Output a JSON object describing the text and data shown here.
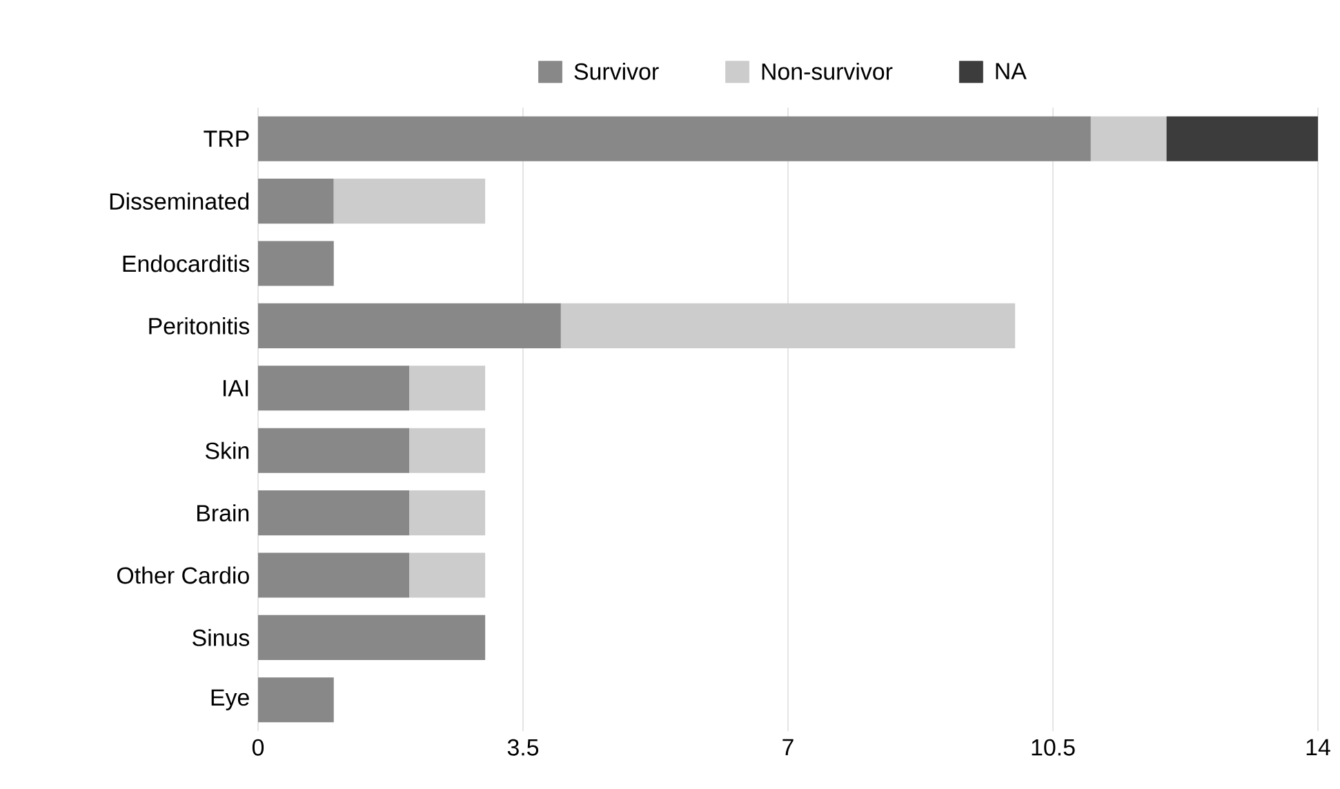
{
  "chart_data": {
    "type": "bar",
    "orientation": "horizontal",
    "stacked": true,
    "categories": [
      "TRP",
      "Disseminated",
      "Endocarditis",
      "Peritonitis",
      "IAI",
      "Skin",
      "Brain",
      "Other Cardio",
      "Sinus",
      "Eye"
    ],
    "series": [
      {
        "name": "Survivor",
        "color": "#888888",
        "values": [
          11,
          1,
          1,
          4,
          2,
          2,
          2,
          2,
          3,
          1
        ]
      },
      {
        "name": "Non-survivor",
        "color": "#cccccc",
        "values": [
          1,
          2,
          null,
          6,
          1,
          1,
          1,
          1,
          null,
          null
        ]
      },
      {
        "name": "NA",
        "color": "#3c3c3c",
        "values": [
          2,
          null,
          null,
          null,
          null,
          null,
          null,
          null,
          null,
          null
        ]
      }
    ],
    "xlim": [
      0,
      14
    ],
    "xticks": [
      0,
      3.5,
      7,
      10.5,
      14
    ],
    "grid": "x",
    "legend": "top"
  }
}
